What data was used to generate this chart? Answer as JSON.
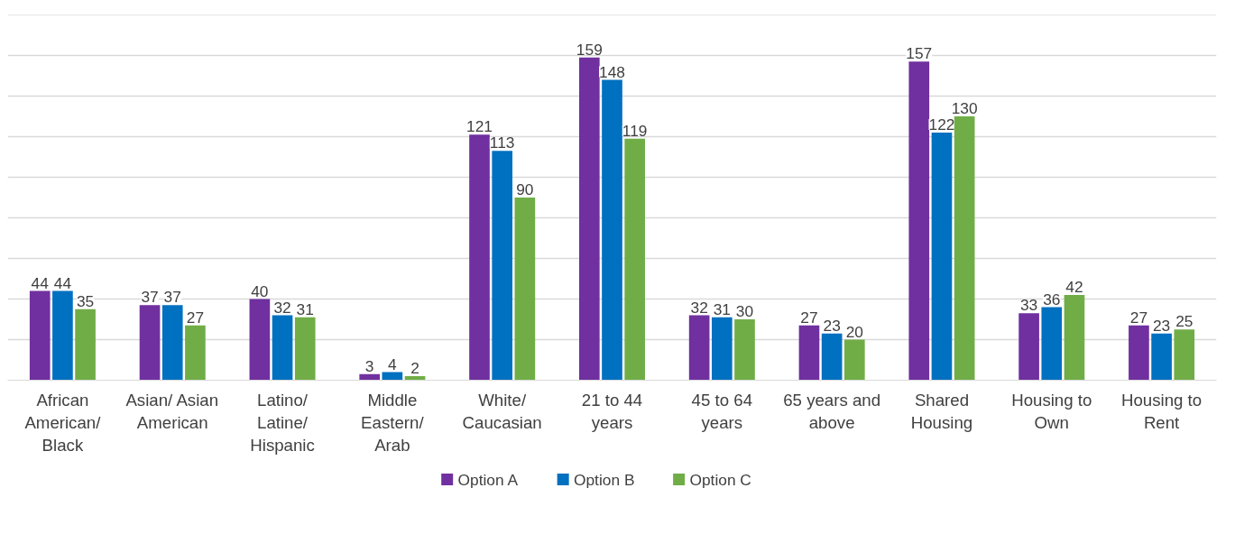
{
  "chart_data": {
    "type": "bar",
    "categories": [
      "African American/ Black",
      "Asian/ Asian American",
      "Latino/ Latine/ Hispanic",
      "Middle Eastern/ Arab",
      "White/ Caucasian",
      "21 to 44 years",
      "45 to 64 years",
      "65 years and above",
      "Shared Housing",
      "Housing to Own",
      "Housing to Rent"
    ],
    "series": [
      {
        "name": "Option A",
        "color": "#7030a0",
        "values": [
          44,
          37,
          40,
          3,
          121,
          159,
          32,
          27,
          157,
          33,
          27
        ]
      },
      {
        "name": "Option B",
        "color": "#0070c0",
        "values": [
          44,
          37,
          32,
          4,
          113,
          148,
          31,
          23,
          122,
          36,
          23
        ]
      },
      {
        "name": "Option C",
        "color": "#70ad47",
        "values": [
          35,
          27,
          31,
          2,
          90,
          119,
          30,
          20,
          130,
          42,
          25
        ]
      }
    ],
    "ylim": [
      0,
      180
    ],
    "yticks": [
      {
        "value": 0,
        "label": null
      },
      {
        "value": 20,
        "label": null
      },
      {
        "value": 40,
        "label": null
      },
      {
        "value": 60,
        "label": null
      },
      {
        "value": 80,
        "label": null
      },
      {
        "value": 100,
        "label": null
      },
      {
        "value": 120,
        "label": null
      },
      {
        "value": 140,
        "label": null
      },
      {
        "value": 160,
        "label": null
      },
      {
        "value": 180,
        "label": null
      }
    ],
    "tick_labels": "x",
    "grid": "y",
    "legend": "bottom",
    "data_labels": true
  }
}
